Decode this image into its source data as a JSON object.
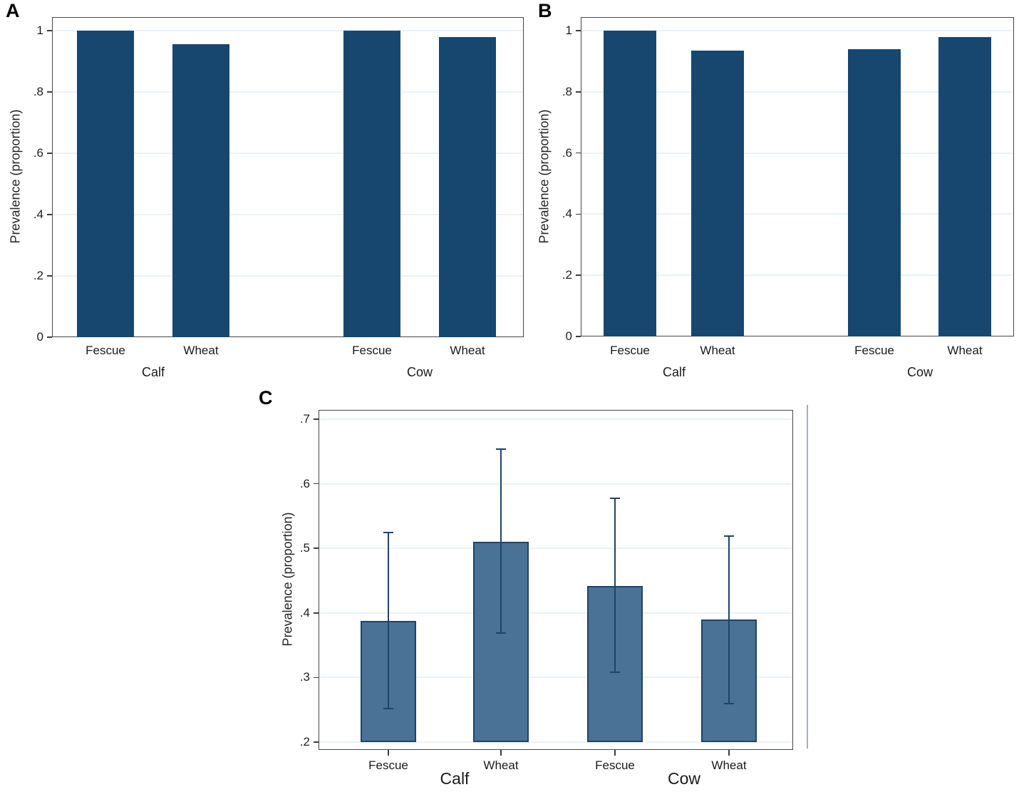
{
  "figure": {
    "background": "#ffffff"
  },
  "colors": {
    "bar_fill_solid": "#17476F",
    "bar_fill_light": "#4A7196",
    "bar_border": "#1F4467",
    "error_bar": "#1F4467",
    "gridline": "#EAF1F7",
    "plot_border": "#464646",
    "text": "#1a1a1a"
  },
  "chart_data": [
    {
      "panel_label": "A",
      "type": "bar",
      "title": "",
      "xlabel": "",
      "ylabel": "Prevalence (proportion)",
      "ylim": [
        0,
        1.044
      ],
      "grid": true,
      "legend": "none",
      "ytick_labels": [
        "0",
        ".2",
        ".4",
        ".6",
        ".8",
        "1"
      ],
      "ytick_values": [
        0,
        0.2,
        0.4,
        0.6,
        0.8,
        1
      ],
      "categories": [
        "Fescue",
        "Wheat",
        "Fescue",
        "Wheat"
      ],
      "group_labels": [
        "Calf",
        "Cow"
      ],
      "values": [
        1.0,
        0.955,
        1.0,
        0.98
      ],
      "bar_color": "#17476F"
    },
    {
      "panel_label": "B",
      "type": "bar",
      "title": "",
      "xlabel": "",
      "ylabel": "Prevalence (proportion)",
      "ylim": [
        0,
        1.044
      ],
      "grid": true,
      "legend": "none",
      "ytick_labels": [
        "0",
        ".2",
        ".4",
        ".6",
        ".8",
        "1"
      ],
      "ytick_values": [
        0,
        0.2,
        0.4,
        0.6,
        0.8,
        1
      ],
      "categories": [
        "Fescue",
        "Wheat",
        "Fescue",
        "Wheat"
      ],
      "group_labels": [
        "Calf",
        "Cow"
      ],
      "values": [
        1.0,
        0.935,
        0.94,
        0.98
      ],
      "bar_color": "#17476F"
    },
    {
      "panel_label": "C",
      "type": "bar",
      "title": "",
      "xlabel": "",
      "ylabel": "Prevalence (proportion)",
      "ylim": [
        0.2,
        0.714
      ],
      "grid": true,
      "legend": "none",
      "ytick_labels": [
        ".2",
        ".3",
        ".4",
        ".5",
        ".6",
        ".7"
      ],
      "ytick_values": [
        0.2,
        0.3,
        0.4,
        0.5,
        0.6,
        0.7
      ],
      "categories": [
        "Fescue",
        "Wheat",
        "Fescue",
        "Wheat"
      ],
      "group_labels": [
        "Calf",
        "Cow"
      ],
      "values": [
        0.388,
        0.51,
        0.442,
        0.39
      ],
      "error_bars": {
        "low": [
          0.252,
          0.369,
          0.308,
          0.26
        ],
        "high": [
          0.524,
          0.654,
          0.578,
          0.519
        ]
      },
      "bar_color": "#4A7196",
      "bar_border_color": "#1F4467",
      "error_color": "#1F4467"
    }
  ]
}
